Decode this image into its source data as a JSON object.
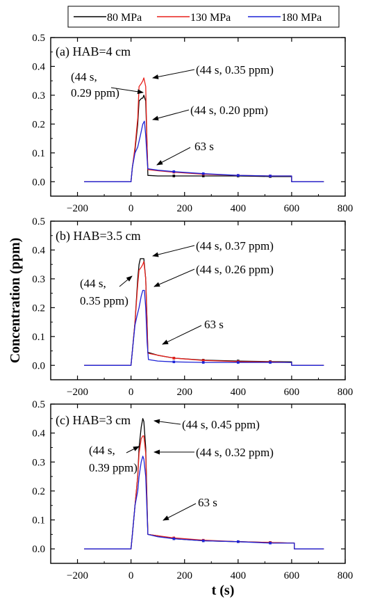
{
  "colors": {
    "s80": "#000000",
    "s130": "#e8211c",
    "s180": "#1c22d6",
    "axis": "#000000"
  },
  "legend": [
    "80 MPa",
    "130 MPa",
    "180 MPa"
  ],
  "xlabel": "t (s)",
  "ylabel": "Concentration (ppm)",
  "chart_data": [
    {
      "type": "line",
      "panel_label": "(a) HAB=4 cm",
      "xlim": [
        -300,
        800
      ],
      "ylim": [
        -0.05,
        0.5
      ],
      "xticks": [
        -200,
        0,
        200,
        400,
        600,
        800
      ],
      "xtick_labels": [
        "−200",
        "0",
        "200",
        "400",
        "600",
        "800"
      ],
      "yticks": [
        0.0,
        0.1,
        0.2,
        0.3,
        0.4,
        0.5
      ],
      "ytick_labels": [
        "0.0",
        "0.1",
        "0.2",
        "0.3",
        "0.4",
        "0.5"
      ],
      "series": [
        {
          "name": "80 MPa",
          "x": [
            -175,
            0,
            5,
            15,
            25,
            30,
            40,
            44,
            48,
            55,
            60,
            63,
            100,
            160,
            270,
            400,
            520,
            600,
            600,
            720
          ],
          "y": [
            0,
            0,
            0.05,
            0.11,
            0.2,
            0.28,
            0.29,
            0.29,
            0.3,
            0.28,
            0.12,
            0.022,
            0.02,
            0.02,
            0.02,
            0.02,
            0.018,
            0.018,
            0,
            0
          ]
        },
        {
          "name": "130 MPa",
          "x": [
            -175,
            0,
            5,
            15,
            25,
            30,
            38,
            44,
            48,
            55,
            60,
            63,
            100,
            160,
            270,
            400,
            520,
            600,
            600,
            720
          ],
          "y": [
            0,
            0,
            0.05,
            0.12,
            0.22,
            0.33,
            0.34,
            0.35,
            0.36,
            0.33,
            0.12,
            0.042,
            0.038,
            0.033,
            0.026,
            0.022,
            0.02,
            0.02,
            0,
            0
          ]
        },
        {
          "name": "180 MPa",
          "x": [
            -175,
            0,
            5,
            15,
            25,
            35,
            44,
            50,
            55,
            60,
            63,
            100,
            160,
            270,
            400,
            520,
            600,
            600,
            720
          ],
          "y": [
            0,
            0,
            0.05,
            0.1,
            0.12,
            0.16,
            0.2,
            0.21,
            0.16,
            0.08,
            0.045,
            0.04,
            0.035,
            0.028,
            0.022,
            0.02,
            0.02,
            0,
            0
          ]
        }
      ],
      "annotations": [
        {
          "lines": [
            "(44 s, 0.35 ppm)"
          ]
        },
        {
          "lines": [
            "(44 s,",
            "0.29 ppm)"
          ]
        },
        {
          "lines": [
            "(44 s, 0.20 ppm)"
          ]
        },
        {
          "lines": [
            "63 s"
          ]
        }
      ]
    },
    {
      "type": "line",
      "panel_label": "(b) HAB=3.5 cm",
      "xlim": [
        -300,
        800
      ],
      "ylim": [
        -0.05,
        0.5
      ],
      "xticks": [
        -200,
        0,
        200,
        400,
        600,
        800
      ],
      "xtick_labels": [
        "−200",
        "0",
        "200",
        "400",
        "600",
        "800"
      ],
      "yticks": [
        0.0,
        0.1,
        0.2,
        0.3,
        0.4,
        0.5
      ],
      "ytick_labels": [
        "0.0",
        "0.1",
        "0.2",
        "0.3",
        "0.4",
        "0.5"
      ],
      "series": [
        {
          "name": "80 MPa",
          "x": [
            -175,
            0,
            5,
            15,
            25,
            30,
            35,
            44,
            48,
            55,
            60,
            63,
            100,
            160,
            270,
            400,
            520,
            600,
            600,
            720
          ],
          "y": [
            0,
            0,
            0.05,
            0.15,
            0.3,
            0.35,
            0.37,
            0.37,
            0.37,
            0.3,
            0.15,
            0.045,
            0.035,
            0.025,
            0.018,
            0.015,
            0.013,
            0.012,
            0,
            0
          ]
        },
        {
          "name": "130 MPa",
          "x": [
            -175,
            0,
            5,
            15,
            25,
            30,
            38,
            44,
            48,
            55,
            60,
            63,
            100,
            160,
            270,
            400,
            520,
            600,
            600,
            720
          ],
          "y": [
            0,
            0,
            0.05,
            0.15,
            0.28,
            0.33,
            0.34,
            0.35,
            0.36,
            0.3,
            0.14,
            0.042,
            0.035,
            0.025,
            0.017,
            0.013,
            0.012,
            0.01,
            0,
            0
          ]
        },
        {
          "name": "180 MPa",
          "x": [
            -175,
            0,
            5,
            15,
            22,
            30,
            38,
            44,
            50,
            55,
            60,
            65,
            100,
            160,
            270,
            400,
            520,
            600,
            600,
            720
          ],
          "y": [
            0,
            0,
            0.05,
            0.14,
            0.17,
            0.2,
            0.24,
            0.26,
            0.26,
            0.2,
            0.08,
            0.02,
            0.015,
            0.012,
            0.01,
            0.01,
            0.01,
            0.01,
            0,
            0
          ]
        }
      ],
      "annotations": [
        {
          "lines": [
            "(44 s, 0.37 ppm)"
          ]
        },
        {
          "lines": [
            "(44 s, 0.26 ppm)"
          ]
        },
        {
          "lines": [
            "(44 s,",
            "0.35 ppm)"
          ]
        },
        {
          "lines": [
            "63 s"
          ]
        }
      ]
    },
    {
      "type": "line",
      "panel_label": "(c) HAB=3 cm",
      "xlim": [
        -300,
        800
      ],
      "ylim": [
        -0.05,
        0.5
      ],
      "xticks": [
        -200,
        0,
        200,
        400,
        600,
        800
      ],
      "xtick_labels": [
        "−200",
        "0",
        "200",
        "400",
        "600",
        "800"
      ],
      "yticks": [
        0.0,
        0.1,
        0.2,
        0.3,
        0.4,
        0.5
      ],
      "ytick_labels": [
        "0.0",
        "0.1",
        "0.2",
        "0.3",
        "0.4",
        "0.5"
      ],
      "series": [
        {
          "name": "80 MPa",
          "x": [
            -175,
            0,
            5,
            15,
            25,
            30,
            38,
            44,
            48,
            55,
            60,
            63,
            100,
            160,
            270,
            400,
            520,
            610,
            610,
            720
          ],
          "y": [
            0,
            0,
            0.05,
            0.15,
            0.25,
            0.35,
            0.42,
            0.45,
            0.44,
            0.35,
            0.15,
            0.05,
            0.045,
            0.035,
            0.028,
            0.025,
            0.022,
            0.02,
            0,
            0
          ]
        },
        {
          "name": "130 MPa",
          "x": [
            -175,
            0,
            5,
            15,
            25,
            30,
            38,
            44,
            48,
            55,
            60,
            63,
            100,
            160,
            270,
            400,
            520,
            610,
            610,
            720
          ],
          "y": [
            0,
            0,
            0.05,
            0.15,
            0.25,
            0.33,
            0.38,
            0.39,
            0.39,
            0.33,
            0.14,
            0.05,
            0.045,
            0.038,
            0.03,
            0.025,
            0.022,
            0.02,
            0,
            0
          ]
        },
        {
          "name": "180 MPa",
          "x": [
            -175,
            0,
            5,
            15,
            25,
            30,
            38,
            44,
            48,
            55,
            60,
            63,
            100,
            160,
            270,
            400,
            520,
            610,
            610,
            720
          ],
          "y": [
            0,
            0,
            0.05,
            0.15,
            0.2,
            0.25,
            0.3,
            0.32,
            0.31,
            0.25,
            0.12,
            0.05,
            0.042,
            0.035,
            0.028,
            0.025,
            0.02,
            0.02,
            0,
            0
          ]
        }
      ],
      "annotations": [
        {
          "lines": [
            "(44 s, 0.45 ppm)"
          ]
        },
        {
          "lines": [
            "(44 s,",
            "0.39 ppm)"
          ]
        },
        {
          "lines": [
            "(44 s, 0.32 ppm)"
          ]
        },
        {
          "lines": [
            "63 s"
          ]
        }
      ]
    }
  ]
}
